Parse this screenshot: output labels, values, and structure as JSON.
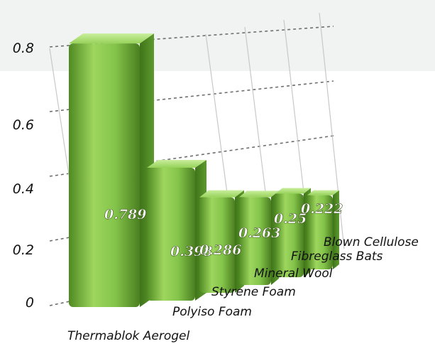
{
  "chart_data": {
    "type": "bar",
    "title": "",
    "xlabel": "",
    "ylabel": "",
    "categories": [
      "Thermablok Aerogel",
      "Polyiso Foam",
      "Styrene Foam",
      "Mineral Wool",
      "Fibreglass Bats",
      "Blown Cellulose"
    ],
    "values": [
      0.789,
      0.398,
      0.286,
      0.263,
      0.25,
      0.222
    ],
    "data_labels": [
      "0.789",
      "0.398",
      "0.286",
      "0.263",
      "0.25",
      "0.222"
    ],
    "yticks": [
      "0",
      "0.2",
      "0.4",
      "0.6",
      "0.8"
    ],
    "ylim": [
      0,
      0.8
    ],
    "grid": true,
    "legend": "none",
    "style": "3d"
  },
  "colors": {
    "bar_light": "#9ed65e",
    "bar_mid": "#6fb13b",
    "bar_dark": "#3f7419",
    "bar_top": "#b9e586",
    "grid": "#6f6f6f",
    "axis": "#c8c8c8",
    "background_band": "#f1f3f2"
  }
}
